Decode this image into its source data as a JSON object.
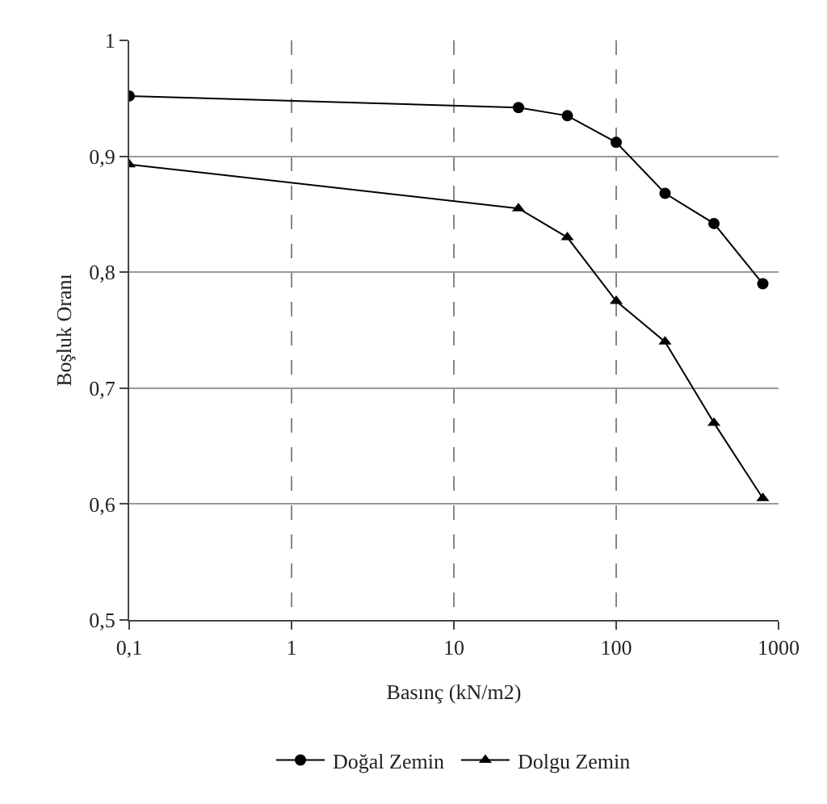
{
  "chart_data": {
    "type": "line",
    "xlabel": "Basınç (kN/m2)",
    "ylabel": "Boşluk Oranı",
    "x": [
      0.1,
      25,
      50,
      100,
      200,
      400,
      800
    ],
    "series": [
      {
        "name": "Doğal Zemin",
        "color": "#000000",
        "marker": "circle",
        "values": [
          0.952,
          0.942,
          0.935,
          0.912,
          0.868,
          0.842,
          0.79
        ]
      },
      {
        "name": "Dolgu Zemin",
        "color": "#000000",
        "marker": "triangle",
        "values": [
          0.893,
          0.855,
          0.83,
          0.775,
          0.74,
          0.67,
          0.605
        ]
      }
    ],
    "log": "x",
    "xlim": [
      0.1,
      1000
    ],
    "ylim": [
      0.5,
      1
    ],
    "xticks": [
      {
        "value": 0.1,
        "label": "0,1"
      },
      1,
      10,
      100,
      1000
    ],
    "yticks": [
      {
        "value": 0.5,
        "label": "0,5"
      },
      {
        "value": 0.6,
        "label": "0,6"
      },
      {
        "value": 0.7,
        "label": "0,7"
      },
      {
        "value": 0.8,
        "label": "0,8"
      },
      {
        "value": 0.9,
        "label": "0,9"
      },
      1
    ],
    "grid": true,
    "legend": "bottom",
    "line_style": "solid"
  }
}
